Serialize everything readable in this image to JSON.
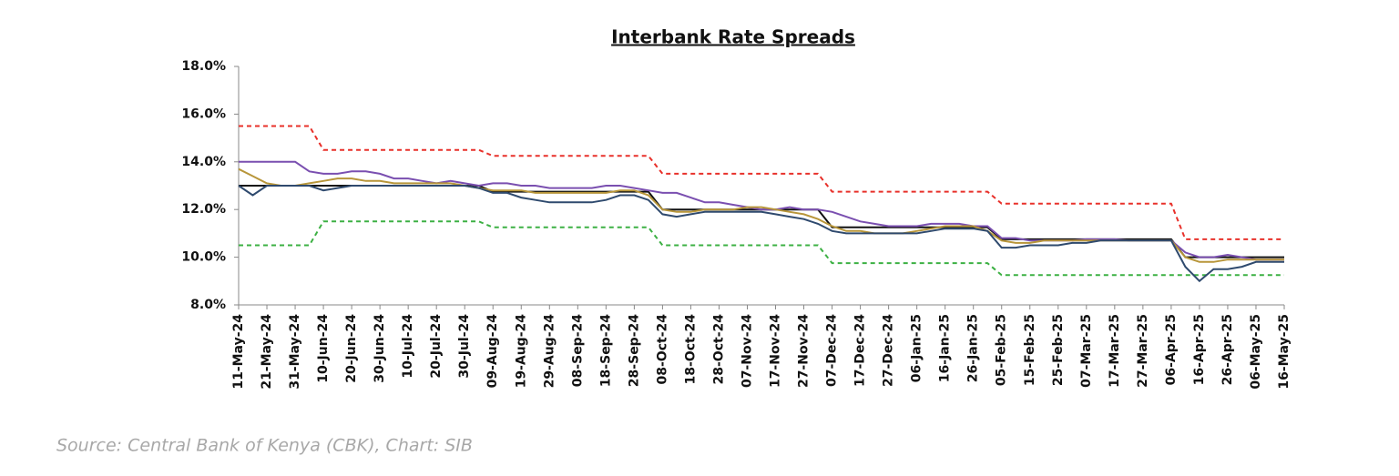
{
  "chart_data": {
    "type": "line",
    "title": "Interbank Rate Spreads",
    "source": "Source: Central Bank of Kenya (CBK), Chart: SIB",
    "categories": [
      "11-May-24",
      null,
      "21-May-24",
      null,
      "31-May-24",
      null,
      "10-Jun-24",
      null,
      "20-Jun-24",
      null,
      "30-Jun-24",
      null,
      "10-Jul-24",
      null,
      "20-Jul-24",
      null,
      "30-Jul-24",
      null,
      "09-Aug-24",
      null,
      "19-Aug-24",
      null,
      "29-Aug-24",
      null,
      "08-Sep-24",
      null,
      "18-Sep-24",
      null,
      "28-Sep-24",
      null,
      "08-Oct-24",
      null,
      "18-Oct-24",
      null,
      "28-Oct-24",
      null,
      "07-Nov-24",
      null,
      "17-Nov-24",
      null,
      "27-Nov-24",
      null,
      "07-Dec-24",
      null,
      "17-Dec-24",
      null,
      "27-Dec-24",
      null,
      "06-Jan-25",
      null,
      "16-Jan-25",
      null,
      "26-Jan-25",
      null,
      "05-Feb-25",
      null,
      "15-Feb-25",
      null,
      "25-Feb-25",
      null,
      "07-Mar-25",
      null,
      "17-Mar-25",
      null,
      "27-Mar-25",
      null,
      "06-Apr-25",
      null,
      "16-Apr-25",
      null,
      "26-Apr-25",
      null,
      "06-May-25",
      null,
      "16-May-25"
    ],
    "ylim": [
      8,
      18
    ],
    "yticks": [
      {
        "value": 8,
        "label": "8.0%"
      },
      {
        "value": 10,
        "label": "10.0%"
      },
      {
        "value": 12,
        "label": "12.0%"
      },
      {
        "value": 14,
        "label": "14.0%"
      },
      {
        "value": 16,
        "label": "16.0%"
      },
      {
        "value": 18,
        "label": "18.0%"
      }
    ],
    "series": [
      {
        "color": "#e8302a",
        "dash": true,
        "values": [
          15.5,
          15.5,
          15.5,
          15.5,
          15.5,
          15.5,
          14.5,
          14.5,
          14.5,
          14.5,
          14.5,
          14.5,
          14.5,
          14.5,
          14.5,
          14.5,
          14.5,
          14.5,
          14.25,
          14.25,
          14.25,
          14.25,
          14.25,
          14.25,
          14.25,
          14.25,
          14.25,
          14.25,
          14.25,
          14.25,
          13.5,
          13.5,
          13.5,
          13.5,
          13.5,
          13.5,
          13.5,
          13.5,
          13.5,
          13.5,
          13.5,
          13.5,
          12.75,
          12.75,
          12.75,
          12.75,
          12.75,
          12.75,
          12.75,
          12.75,
          12.75,
          12.75,
          12.75,
          12.75,
          12.25,
          12.25,
          12.25,
          12.25,
          12.25,
          12.25,
          12.25,
          12.25,
          12.25,
          12.25,
          12.25,
          12.25,
          12.25,
          10.75,
          10.75,
          10.75,
          10.75,
          10.75,
          10.75,
          10.75,
          10.75
        ]
      },
      {
        "color": "#3cb043",
        "dash": true,
        "values": [
          10.5,
          10.5,
          10.5,
          10.5,
          10.5,
          10.5,
          11.5,
          11.5,
          11.5,
          11.5,
          11.5,
          11.5,
          11.5,
          11.5,
          11.5,
          11.5,
          11.5,
          11.5,
          11.25,
          11.25,
          11.25,
          11.25,
          11.25,
          11.25,
          11.25,
          11.25,
          11.25,
          11.25,
          11.25,
          11.25,
          10.5,
          10.5,
          10.5,
          10.5,
          10.5,
          10.5,
          10.5,
          10.5,
          10.5,
          10.5,
          10.5,
          10.5,
          9.75,
          9.75,
          9.75,
          9.75,
          9.75,
          9.75,
          9.75,
          9.75,
          9.75,
          9.75,
          9.75,
          9.75,
          9.25,
          9.25,
          9.25,
          9.25,
          9.25,
          9.25,
          9.25,
          9.25,
          9.25,
          9.25,
          9.25,
          9.25,
          9.25,
          9.25,
          9.25,
          9.25,
          9.25,
          9.25,
          9.25,
          9.25,
          9.25
        ]
      },
      {
        "color": "#111111",
        "dash": false,
        "values": [
          13,
          13,
          13,
          13,
          13,
          13,
          13,
          13,
          13,
          13,
          13,
          13,
          13,
          13,
          13,
          13,
          13,
          13,
          12.75,
          12.75,
          12.75,
          12.75,
          12.75,
          12.75,
          12.75,
          12.75,
          12.75,
          12.75,
          12.75,
          12.75,
          12,
          12,
          12,
          12,
          12,
          12,
          12,
          12,
          12,
          12,
          12,
          12,
          11.25,
          11.25,
          11.25,
          11.25,
          11.25,
          11.25,
          11.25,
          11.25,
          11.25,
          11.25,
          11.25,
          11.25,
          10.75,
          10.75,
          10.75,
          10.75,
          10.75,
          10.75,
          10.75,
          10.75,
          10.75,
          10.75,
          10.75,
          10.75,
          10.75,
          10,
          10,
          10,
          10,
          10,
          10,
          10,
          10
        ]
      },
      {
        "color": "#7a4fb0",
        "dash": false,
        "values": [
          14,
          14,
          14,
          14,
          14,
          13.6,
          13.5,
          13.5,
          13.6,
          13.6,
          13.5,
          13.3,
          13.3,
          13.2,
          13.1,
          13.2,
          13.1,
          13,
          13.1,
          13.1,
          13,
          13,
          12.9,
          12.9,
          12.9,
          12.9,
          13,
          13,
          12.9,
          12.8,
          12.7,
          12.7,
          12.5,
          12.3,
          12.3,
          12.2,
          12.1,
          12,
          12,
          12.1,
          12,
          12,
          11.9,
          11.7,
          11.5,
          11.4,
          11.3,
          11.3,
          11.3,
          11.4,
          11.4,
          11.4,
          11.3,
          11.3,
          10.8,
          10.8,
          10.7,
          10.7,
          10.7,
          10.7,
          10.75,
          10.75,
          10.75,
          10.7,
          10.7,
          10.7,
          10.7,
          10.2,
          10,
          10,
          10.1,
          10,
          9.9,
          9.9,
          9.9
        ]
      },
      {
        "color": "#b8963a",
        "dash": false,
        "values": [
          13.7,
          13.4,
          13.1,
          13,
          13,
          13.1,
          13.2,
          13.3,
          13.3,
          13.2,
          13.2,
          13.1,
          13.1,
          13.1,
          13.1,
          13.1,
          13,
          12.9,
          12.8,
          12.8,
          12.8,
          12.7,
          12.7,
          12.7,
          12.7,
          12.7,
          12.7,
          12.8,
          12.8,
          12.6,
          12,
          11.9,
          11.9,
          12,
          12,
          12,
          12.1,
          12.1,
          12,
          11.9,
          11.8,
          11.6,
          11.3,
          11.1,
          11.1,
          11,
          11,
          11,
          11.1,
          11.2,
          11.3,
          11.3,
          11.3,
          11.1,
          10.7,
          10.6,
          10.6,
          10.7,
          10.7,
          10.7,
          10.7,
          10.7,
          10.7,
          10.7,
          10.7,
          10.7,
          10.7,
          10,
          9.8,
          9.8,
          9.9,
          9.9,
          9.9,
          9.9,
          9.9
        ]
      },
      {
        "color": "#2f4a6e",
        "dash": false,
        "values": [
          13,
          12.6,
          13,
          13,
          13,
          13,
          12.8,
          12.9,
          13,
          13,
          13,
          13,
          13,
          13,
          13,
          13,
          13,
          12.9,
          12.7,
          12.7,
          12.5,
          12.4,
          12.3,
          12.3,
          12.3,
          12.3,
          12.4,
          12.6,
          12.6,
          12.4,
          11.8,
          11.7,
          11.8,
          11.9,
          11.9,
          11.9,
          11.9,
          11.9,
          11.8,
          11.7,
          11.6,
          11.4,
          11.1,
          11,
          11,
          11,
          11,
          11,
          11,
          11.1,
          11.2,
          11.2,
          11.2,
          11.1,
          10.4,
          10.4,
          10.5,
          10.5,
          10.5,
          10.6,
          10.6,
          10.7,
          10.7,
          10.7,
          10.7,
          10.7,
          10.7,
          9.6,
          9,
          9.5,
          9.5,
          9.6,
          9.8,
          9.8,
          9.8
        ]
      }
    ]
  }
}
